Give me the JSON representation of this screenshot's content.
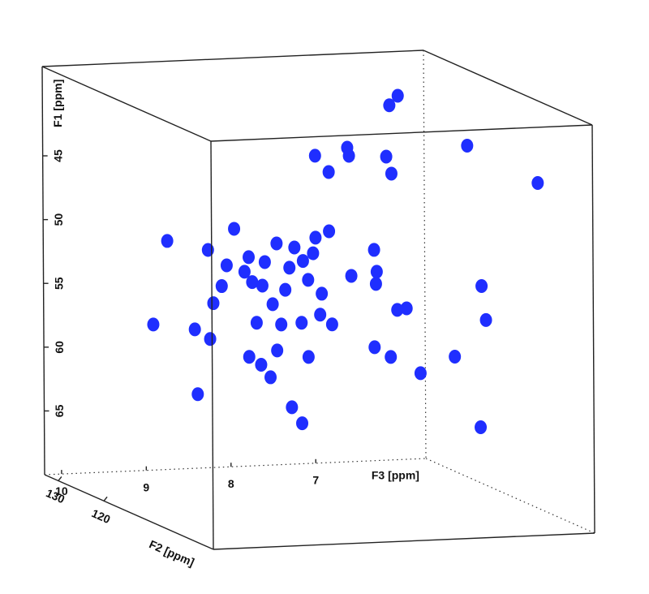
{
  "chart_data": {
    "type": "scatter3d",
    "xlabel": "F3 [ppm]",
    "ylabel": "F1 [ppm]",
    "zlabel": "F2 [ppm]",
    "xlim": [
      10.2,
      5.7
    ],
    "ylim": [
      38,
      70
    ],
    "zlim": [
      133,
      96
    ],
    "xticks": [
      10,
      9,
      8,
      7
    ],
    "yticks": [
      45,
      50,
      55,
      60,
      65
    ],
    "zticks": [
      130,
      120
    ],
    "color": "#1f2eff",
    "x": [
      9.73,
      9.9,
      9.25,
      9.23,
      9.19,
      9.09,
      8.94,
      9.03,
      8.77,
      8.82,
      8.73,
      8.58,
      8.61,
      8.44,
      8.29,
      8.34,
      8.23,
      8.13,
      8.01,
      7.98,
      7.82,
      8.07,
      7.91,
      8.49,
      8.68,
      8.39,
      8.15,
      7.93,
      7.79,
      8.77,
      8.63,
      8.44,
      8.07,
      8.52,
      8.27,
      8.15,
      7.56,
      7.29,
      7.26,
      7.27,
      7.29,
      7.1,
      7.02,
      6.91,
      6.75,
      7.98,
      7.82,
      7.6,
      7.58,
      7.14,
      7.08,
      7.1,
      7.0,
      9.38,
      9.41,
      6.62,
      6.57,
      6.94,
      5.95,
      6.78,
      6.64
    ],
    "y": [
      48.88,
      55.38,
      49.72,
      56.71,
      53.91,
      52.6,
      48.15,
      50.99,
      50.42,
      51.55,
      52.39,
      50.86,
      52.7,
      49.44,
      51.38,
      53.1,
      49.82,
      50.9,
      50.33,
      49.12,
      48.66,
      52.4,
      53.53,
      54.19,
      55.59,
      55.81,
      55.74,
      55.17,
      55.97,
      58.24,
      58.9,
      57.83,
      58.44,
      59.91,
      62.33,
      63.62,
      52.23,
      50.27,
      51.99,
      52.94,
      57.9,
      58.72,
      55.05,
      54.96,
      60.09,
      42.69,
      44.02,
      42.17,
      42.81,
      43.0,
      44.35,
      38.99,
      38.27,
      60.99,
      55.9,
      51.54,
      54.22,
      56.98,
      43.65,
      40.49,
      62.6
    ],
    "z": [
      114.5,
      114.5,
      114.5,
      114.5,
      114.5,
      114.5,
      114.5,
      114.5,
      114.5,
      114.5,
      114.5,
      114.5,
      114.5,
      114.5,
      114.5,
      114.5,
      114.5,
      114.5,
      114.5,
      114.5,
      114.5,
      114.5,
      114.5,
      114.5,
      114.5,
      114.5,
      114.5,
      114.5,
      114.5,
      114.5,
      114.5,
      114.5,
      114.5,
      114.5,
      114.5,
      114.5,
      114.5,
      114.5,
      114.5,
      114.5,
      114.5,
      114.5,
      114.5,
      114.5,
      114.5,
      114.5,
      114.5,
      114.5,
      114.5,
      114.5,
      114.5,
      114.5,
      114.5,
      114.5,
      114.5,
      103.4,
      103.4,
      103.4,
      103.4,
      103.4,
      103.4
    ]
  }
}
